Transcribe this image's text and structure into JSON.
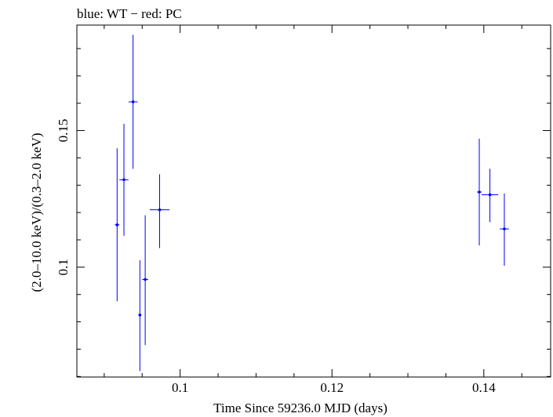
{
  "chart_data": {
    "type": "scatter",
    "title": "blue: WT − red: PC",
    "xlabel": "Time Since 59236.0 MJD (days)",
    "ylabel": "(2.0–10.0 keV)/(0.3–2.0 keV)",
    "xlim": [
      0.0864,
      0.1488
    ],
    "ylim": [
      0.0598,
      0.1886
    ],
    "x_ticks": [
      0.1,
      0.12,
      0.14
    ],
    "x_tick_labels": [
      "0.1",
      "0.12",
      "0.14"
    ],
    "y_ticks": [
      0.1,
      0.15
    ],
    "y_tick_labels": [
      "0.1",
      "0.15"
    ],
    "grid": false,
    "colors": {
      "WT": "#0000ff",
      "PC": "#ff0000"
    },
    "series": [
      {
        "name": "WT",
        "color": "#0000ff",
        "points": [
          {
            "x": 0.0917,
            "xerr": 0.0003,
            "y": 0.1155,
            "yerr_low": 0.028,
            "yerr_high": 0.028
          },
          {
            "x": 0.0926,
            "xerr": 0.0006,
            "y": 0.132,
            "yerr_low": 0.0205,
            "yerr_high": 0.0205
          },
          {
            "x": 0.0938,
            "xerr": 0.0006,
            "y": 0.1605,
            "yerr_low": 0.0245,
            "yerr_high": 0.0245
          },
          {
            "x": 0.0947,
            "xerr": 0.0002,
            "y": 0.0825,
            "yerr_low": 0.0205,
            "yerr_high": 0.02
          },
          {
            "x": 0.0954,
            "xerr": 0.0004,
            "y": 0.0955,
            "yerr_low": 0.024,
            "yerr_high": 0.0235
          },
          {
            "x": 0.0973,
            "xerr": 0.0013,
            "y": 0.121,
            "yerr_low": 0.014,
            "yerr_high": 0.013
          },
          {
            "x": 0.1394,
            "xerr": 0.0003,
            "y": 0.1275,
            "yerr_low": 0.0195,
            "yerr_high": 0.0195
          },
          {
            "x": 0.1408,
            "xerr": 0.0011,
            "y": 0.1265,
            "yerr_low": 0.01,
            "yerr_high": 0.0095
          },
          {
            "x": 0.1427,
            "xerr": 0.0006,
            "y": 0.114,
            "yerr_low": 0.0135,
            "yerr_high": 0.013
          }
        ]
      }
    ]
  }
}
